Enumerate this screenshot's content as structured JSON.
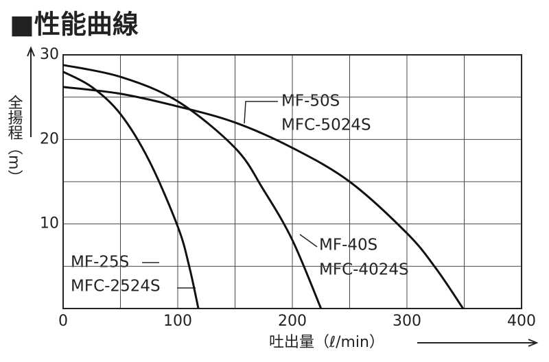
{
  "chart_data": {
    "type": "line",
    "title": "■性能曲線",
    "y_label": "全揚程（m）",
    "x_label": "吐出量（ℓ/min）",
    "xlim": [
      0,
      400
    ],
    "xticks": [
      0,
      100,
      200,
      300,
      400
    ],
    "xminor": [
      50,
      150,
      250,
      350
    ],
    "ylim": [
      0,
      30
    ],
    "yticks": [
      10,
      20,
      30
    ],
    "yminor": [
      5,
      15,
      25
    ],
    "grid": true,
    "series": [
      {
        "name": "MF-25S",
        "model": "MFC-2524S",
        "color": "#111111",
        "x": [
          0,
          25,
          50,
          75,
          100,
          110,
          118
        ],
        "values": [
          28,
          26.2,
          23,
          17.5,
          9.7,
          5,
          0
        ]
      },
      {
        "name": "MF-40S",
        "model": "MFC-4024S",
        "color": "#111111",
        "x": [
          0,
          50,
          100,
          150,
          175,
          200,
          225
        ],
        "values": [
          28.8,
          27.4,
          24.5,
          19,
          14,
          8.1,
          0
        ]
      },
      {
        "name": "MF-50S",
        "model": "MFC-5024S",
        "color": "#111111",
        "x": [
          0,
          50,
          100,
          150,
          200,
          250,
          300,
          325,
          349
        ],
        "values": [
          26.2,
          25.4,
          23.9,
          22,
          19,
          15,
          8.9,
          4.8,
          0
        ]
      }
    ]
  }
}
